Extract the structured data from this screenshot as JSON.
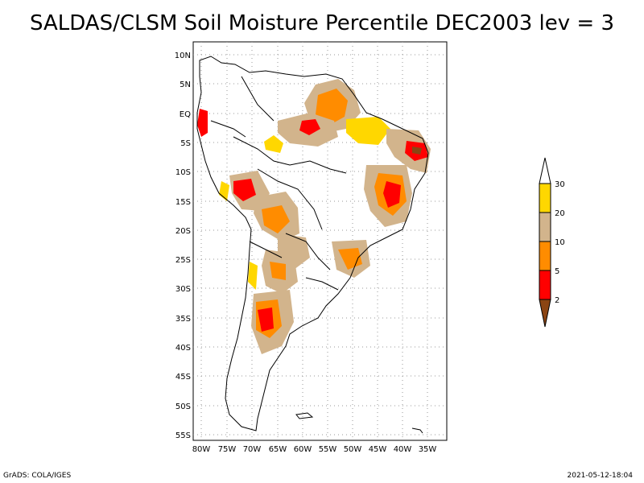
{
  "title": "SALDAS/CLSM Soil Moisture Percentile DEC2003 lev = 3",
  "map": {
    "lat_labels": [
      "10N",
      "5N",
      "EQ",
      "5S",
      "10S",
      "15S",
      "20S",
      "25S",
      "30S",
      "35S",
      "40S",
      "45S",
      "50S",
      "55S"
    ],
    "lon_labels": [
      "80W",
      "75W",
      "70W",
      "65W",
      "60W",
      "55W",
      "50W",
      "45W",
      "40W",
      "35W"
    ],
    "lon_range": [
      -82,
      -33
    ],
    "lat_range": [
      -56,
      12
    ]
  },
  "legend": {
    "labels": [
      "2",
      "5",
      "10",
      "20",
      "30"
    ],
    "colors": {
      "below_2": "#8b4513",
      "2_5": "#ff0000",
      "5_10": "#ff8c00",
      "10_20": "#d2b48c",
      "20_30": "#ffd700",
      "above_30": "#ffffff"
    }
  },
  "footer": {
    "left": "GrADS: COLA/IGES",
    "right": "2021-05-12-18:04"
  }
}
